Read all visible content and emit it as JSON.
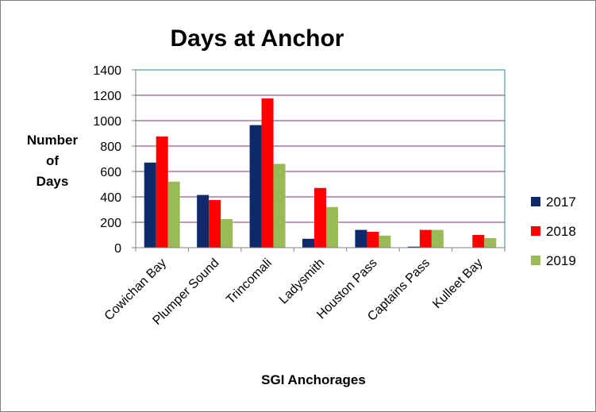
{
  "chart_data": {
    "type": "bar",
    "title": "Days at Anchor",
    "xlabel": "SGI Anchorages",
    "ylabel_lines": [
      "Number",
      "of",
      "Days"
    ],
    "ylim": [
      0,
      1400
    ],
    "ytick_step": 200,
    "yticks": [
      "0",
      "200",
      "400",
      "600",
      "800",
      "1000",
      "1200",
      "1400"
    ],
    "grid": true,
    "legend_position": "right",
    "categories": [
      "Cowichan Bay",
      "Plumper Sound",
      "Trincomali",
      "Ladysmith",
      "Houston Pass",
      "Captains Pass",
      "Kulleet Bay"
    ],
    "series": [
      {
        "name": "2017",
        "color": "#0f2a6b",
        "values": [
          670,
          415,
          965,
          70,
          140,
          8,
          0
        ]
      },
      {
        "name": "2018",
        "color": "#ff0000",
        "values": [
          875,
          375,
          1175,
          470,
          125,
          140,
          100
        ]
      },
      {
        "name": "2019",
        "color": "#99bb55",
        "values": [
          520,
          225,
          660,
          320,
          95,
          140,
          75
        ]
      }
    ],
    "plot_border_color": "#2a8a8a",
    "grid_color": "#7a3a7a"
  }
}
